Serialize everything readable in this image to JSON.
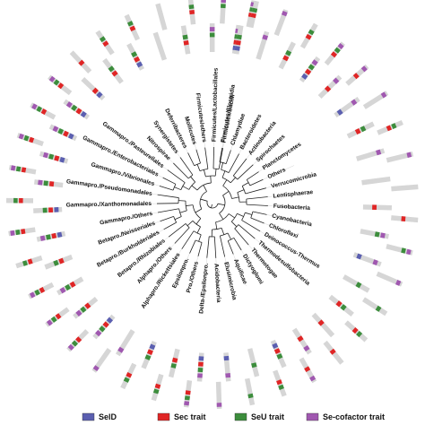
{
  "taxa": [
    {
      "name": "Firmicutes/Clostridia",
      "traits": [
        "seld",
        "sec",
        "seu",
        "cof"
      ]
    },
    {
      "name": "Chlamydiae",
      "traits": [
        "cof"
      ]
    },
    {
      "name": "Bacteroidetes",
      "traits": [
        "sec",
        "seu"
      ]
    },
    {
      "name": "Actinobacteria",
      "traits": [
        "seld",
        "sec",
        "seu",
        "cof"
      ]
    },
    {
      "name": "Spirochaetes",
      "traits": [
        "sec",
        "cof"
      ]
    },
    {
      "name": "Planctomycetes",
      "traits": [
        "seld",
        "cof"
      ]
    },
    {
      "name": "Others",
      "traits": [
        "sec",
        "seu"
      ]
    },
    {
      "name": "Verrucomicrobia",
      "traits": [
        "cof"
      ]
    },
    {
      "name": "Lentisphaerae",
      "traits": []
    },
    {
      "name": "Fusobacteria",
      "traits": [
        "sec"
      ]
    },
    {
      "name": "Cyanobacteria",
      "traits": [
        "seu",
        "cof"
      ]
    },
    {
      "name": "Chloroflexi",
      "traits": [
        "seld",
        "cof"
      ]
    },
    {
      "name": "Deinococcus-Thermus",
      "traits": [
        "seu"
      ]
    },
    {
      "name": "Thermodesulfobacteria",
      "traits": [
        "sec",
        "seu"
      ]
    },
    {
      "name": "Thermotogae",
      "traits": [
        "sec"
      ]
    },
    {
      "name": "Dictyoglomi",
      "traits": [
        "sec",
        "cof"
      ]
    },
    {
      "name": "Aquificae",
      "traits": [
        "seld",
        "sec",
        "seu"
      ]
    },
    {
      "name": "Elusimicrobia",
      "traits": [
        "seu"
      ]
    },
    {
      "name": "Acidobacteria",
      "traits": [
        "seld",
        "cof"
      ]
    },
    {
      "name": "Delta-/Epsilonpro.",
      "traits": [
        "seld",
        "sec",
        "seu",
        "cof"
      ]
    },
    {
      "name": "Pro./Others",
      "traits": [
        "sec",
        "seu"
      ]
    },
    {
      "name": "Epsilonpro.",
      "traits": [
        "seld",
        "sec",
        "seu"
      ]
    },
    {
      "name": "Alphapro./Rickettsiales",
      "traits": [
        "cof"
      ]
    },
    {
      "name": "Alphapro./Others",
      "traits": [
        "seld",
        "sec",
        "seu",
        "cof"
      ]
    },
    {
      "name": "Betapro./Rhizobiales",
      "traits": [
        "sec",
        "seu",
        "cof"
      ]
    },
    {
      "name": "Betapro./Burkholderiales",
      "traits": [
        "sec",
        "seu",
        "cof"
      ]
    },
    {
      "name": "Betapro./Neisseriales",
      "traits": [
        "sec",
        "seu"
      ]
    },
    {
      "name": "Gammapro./Others",
      "traits": [
        "seld",
        "sec",
        "seu",
        "cof"
      ]
    },
    {
      "name": "Gammapro./Xanthomonadales",
      "traits": [
        "seld",
        "sec",
        "seu"
      ]
    },
    {
      "name": "Gammapro./Pseudomonadales",
      "traits": [
        "sec",
        "seu",
        "cof"
      ]
    },
    {
      "name": "Gammapro./Vibrionales",
      "traits": [
        "seld",
        "sec",
        "seu",
        "cof"
      ]
    },
    {
      "name": "Gammapro./Enterobacteriales",
      "traits": [
        "seld",
        "sec",
        "seu",
        "cof"
      ]
    },
    {
      "name": "Gammapro./Pasteurellales",
      "traits": [
        "seld",
        "sec",
        "seu",
        "cof"
      ]
    },
    {
      "name": "Nitrospirae",
      "traits": [
        "seld",
        "sec"
      ]
    },
    {
      "name": "Synergistetes",
      "traits": [
        "sec",
        "seu"
      ]
    },
    {
      "name": "Deferribacteres",
      "traits": [
        "seld",
        "sec",
        "seu"
      ]
    },
    {
      "name": "Mollicutes",
      "traits": []
    },
    {
      "name": "Firmicutes/others",
      "traits": [
        "sec",
        "seu"
      ]
    },
    {
      "name": "Firmicutes/Lactobacillales",
      "traits": [
        "seu",
        "cof"
      ]
    },
    {
      "name": "Firmicutes/Bacilli",
      "traits": [
        "seld",
        "sec",
        "seu"
      ]
    }
  ],
  "legend": [
    {
      "key": "seld",
      "label": "SelD",
      "color": "#5b5fb0"
    },
    {
      "key": "sec",
      "label": "Sec trait",
      "color": "#e02525"
    },
    {
      "key": "seu",
      "label": "SeU trait",
      "color": "#3c8d3c"
    },
    {
      "key": "cof",
      "label": "Se-cofactor trait",
      "color": "#a058b0"
    }
  ],
  "bar_color": "#d6d6d6"
}
